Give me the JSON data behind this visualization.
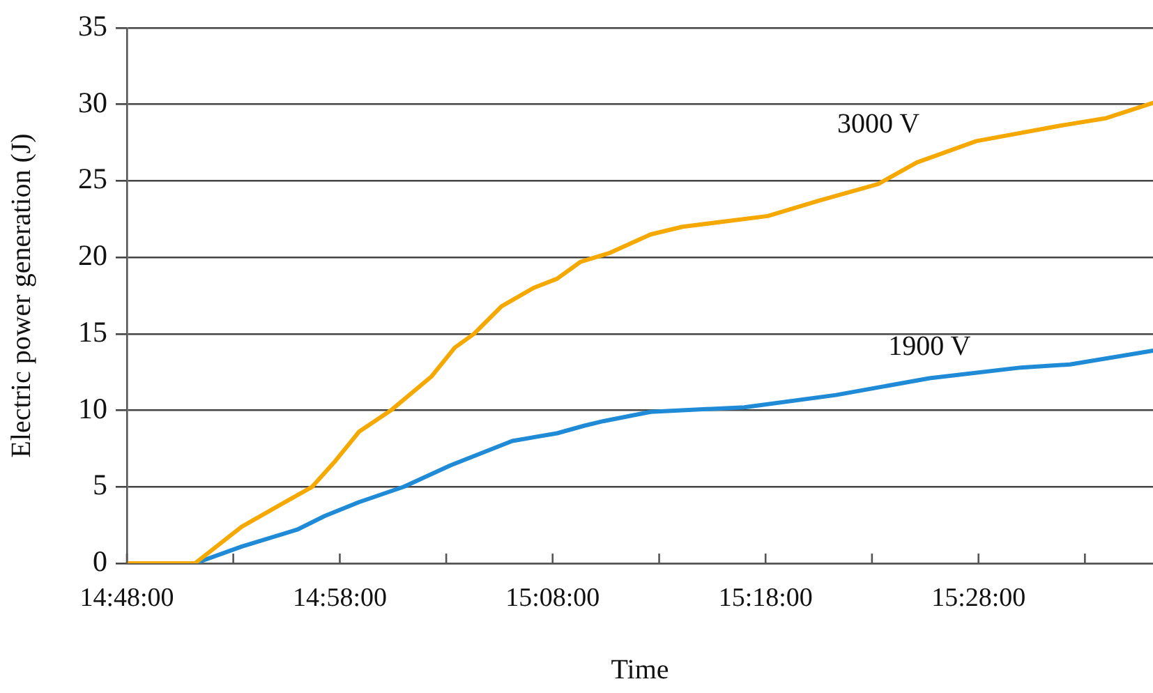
{
  "chart_data": {
    "type": "line",
    "xlabel": "Time",
    "ylabel": "Electric power generation (J)",
    "xlim": [
      14.8,
      15.6033
    ],
    "ylim": [
      0,
      35
    ],
    "yticks": [
      0,
      5,
      10,
      15,
      20,
      25,
      30,
      35
    ],
    "xticks": [
      {
        "value": 14.8,
        "label": "14:48:00"
      },
      {
        "value": 14.8833,
        "label": null
      },
      {
        "value": 14.9667,
        "label": "14:58:00"
      },
      {
        "value": 15.05,
        "label": null
      },
      {
        "value": 15.1333,
        "label": "15:08:00"
      },
      {
        "value": 15.2167,
        "label": null
      },
      {
        "value": 15.3,
        "label": "15:18:00"
      },
      {
        "value": 15.3833,
        "label": null
      },
      {
        "value": 15.4667,
        "label": "15:28:00"
      },
      {
        "value": 15.55,
        "label": null
      }
    ],
    "grid": "y",
    "legend": false,
    "marker": "none",
    "line_style": "solid",
    "series": [
      {
        "name": "3000 V",
        "color": "#f5a800",
        "x": [
          14.8,
          14.8533,
          14.89,
          14.9217,
          14.945,
          14.9633,
          14.9817,
          15.0067,
          15.0383,
          15.0567,
          15.0717,
          15.0933,
          15.1183,
          15.1367,
          15.155,
          15.1783,
          15.21,
          15.235,
          15.3017,
          15.3417,
          15.3883,
          15.4183,
          15.465,
          15.53,
          15.5667,
          15.6033
        ],
        "values": [
          0,
          0,
          2.4,
          3.9,
          5,
          6.7,
          8.6,
          10,
          12.2,
          14.1,
          15,
          16.8,
          18,
          18.6,
          19.7,
          20.3,
          21.5,
          22,
          22.7,
          23.7,
          24.8,
          26.2,
          27.6,
          28.6,
          29.1,
          30.1
        ]
      },
      {
        "name": "1900 V",
        "color": "#1f8ad6",
        "x": [
          14.8533,
          14.89,
          14.9333,
          14.955,
          14.9817,
          15.0167,
          15.0533,
          15.1017,
          15.1367,
          15.1583,
          15.1733,
          15.21,
          15.2833,
          15.355,
          15.4283,
          15.5,
          15.5383,
          15.6033
        ],
        "values": [
          0,
          1.1,
          2.2,
          3.1,
          4,
          5,
          6.4,
          8,
          8.5,
          9,
          9.3,
          9.9,
          10.2,
          11,
          12.1,
          12.8,
          13,
          13.9
        ]
      }
    ]
  }
}
